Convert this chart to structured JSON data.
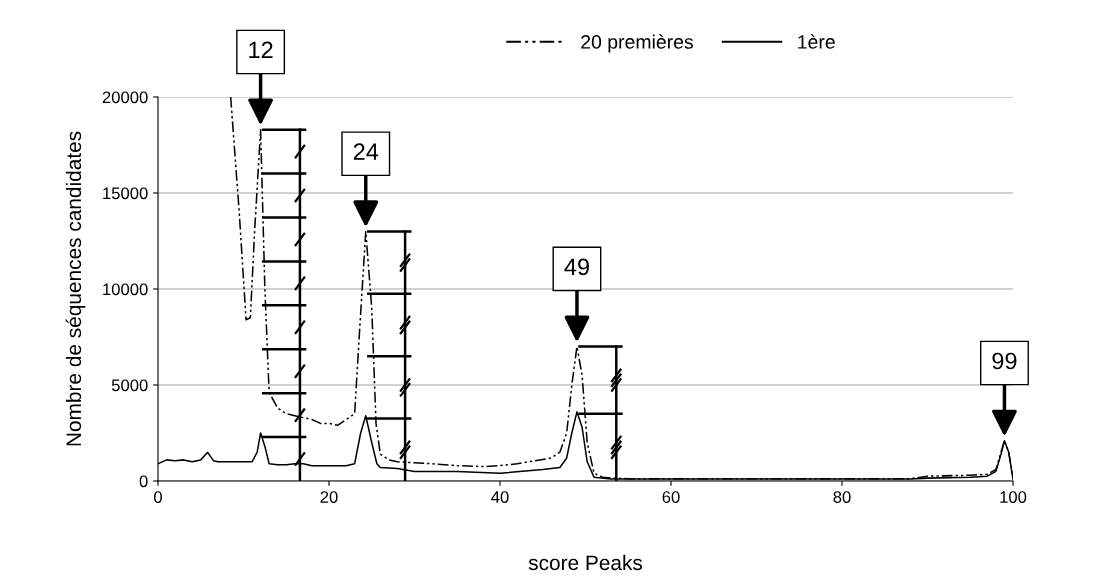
{
  "chart_data": {
    "type": "line",
    "xlabel": "score Peaks",
    "ylabel": "Nombre de séquences candidates",
    "xlim": [
      0,
      100
    ],
    "xticks": [
      0,
      20,
      40,
      60,
      80,
      100
    ],
    "ylim": [
      0,
      20000
    ],
    "yticks": [
      0,
      5000,
      10000,
      15000,
      20000
    ],
    "grid": "y",
    "legend": "top",
    "series": [
      {
        "name": "20 premières",
        "color": "#000000",
        "line_style": "dashed",
        "x": [
          8.5,
          9.5,
          10.3,
          10.8,
          11.3,
          12,
          12.5,
          13,
          14,
          15,
          16,
          17,
          18,
          19,
          20,
          21,
          22,
          23,
          23.6,
          24.3,
          25,
          25.5,
          26,
          27,
          28,
          30,
          32,
          35,
          38,
          40,
          42,
          44,
          46,
          47,
          47.8,
          48.4,
          49,
          49.6,
          50.2,
          51,
          52,
          53,
          55,
          60,
          70,
          80,
          88,
          90,
          95,
          97,
          98,
          98.6,
          99,
          99.5,
          100
        ],
        "values": [
          20000,
          14000,
          8400,
          8500,
          13000,
          18300,
          10000,
          4600,
          3800,
          3500,
          3400,
          3300,
          3200,
          3000,
          3000,
          2900,
          3200,
          3500,
          8000,
          13000,
          9000,
          3000,
          1400,
          1100,
          1000,
          950,
          900,
          800,
          750,
          800,
          900,
          1050,
          1200,
          1500,
          2500,
          5000,
          7000,
          5500,
          2000,
          400,
          200,
          150,
          120,
          120,
          120,
          120,
          120,
          250,
          300,
          350,
          600,
          1500,
          2100,
          1500,
          100
        ]
      },
      {
        "name": "1ère",
        "color": "#000000",
        "line_style": "solid",
        "x": [
          0,
          1,
          2,
          3,
          4,
          5,
          5.8,
          6.5,
          7,
          8,
          9,
          10,
          11,
          11.6,
          12,
          12.5,
          13,
          14,
          15,
          16,
          17,
          18,
          20,
          22,
          23,
          23.7,
          24.3,
          25,
          25.6,
          26,
          28,
          30,
          35,
          40,
          45,
          47,
          47.8,
          48.4,
          49,
          49.6,
          50.2,
          51,
          53,
          55,
          60,
          70,
          80,
          88,
          90,
          95,
          97,
          98,
          98.6,
          99,
          99.5,
          100
        ],
        "values": [
          900,
          1100,
          1050,
          1100,
          1000,
          1100,
          1500,
          1050,
          1000,
          1000,
          1000,
          1000,
          1000,
          1500,
          2500,
          1800,
          900,
          850,
          850,
          900,
          900,
          800,
          800,
          800,
          900,
          2500,
          3400,
          2000,
          900,
          700,
          650,
          500,
          500,
          400,
          600,
          700,
          1200,
          2500,
          3600,
          2800,
          1000,
          200,
          100,
          100,
          100,
          100,
          100,
          100,
          150,
          200,
          250,
          500,
          1400,
          2100,
          1500,
          100
        ]
      }
    ],
    "annotations": [
      {
        "text": "12",
        "x": 12,
        "y": 18300
      },
      {
        "text": "24",
        "x": 24.3,
        "y": 13000
      },
      {
        "text": "49",
        "x": 49,
        "y": 7000
      },
      {
        "text": "99",
        "x": 99,
        "y": 2100
      }
    ]
  }
}
